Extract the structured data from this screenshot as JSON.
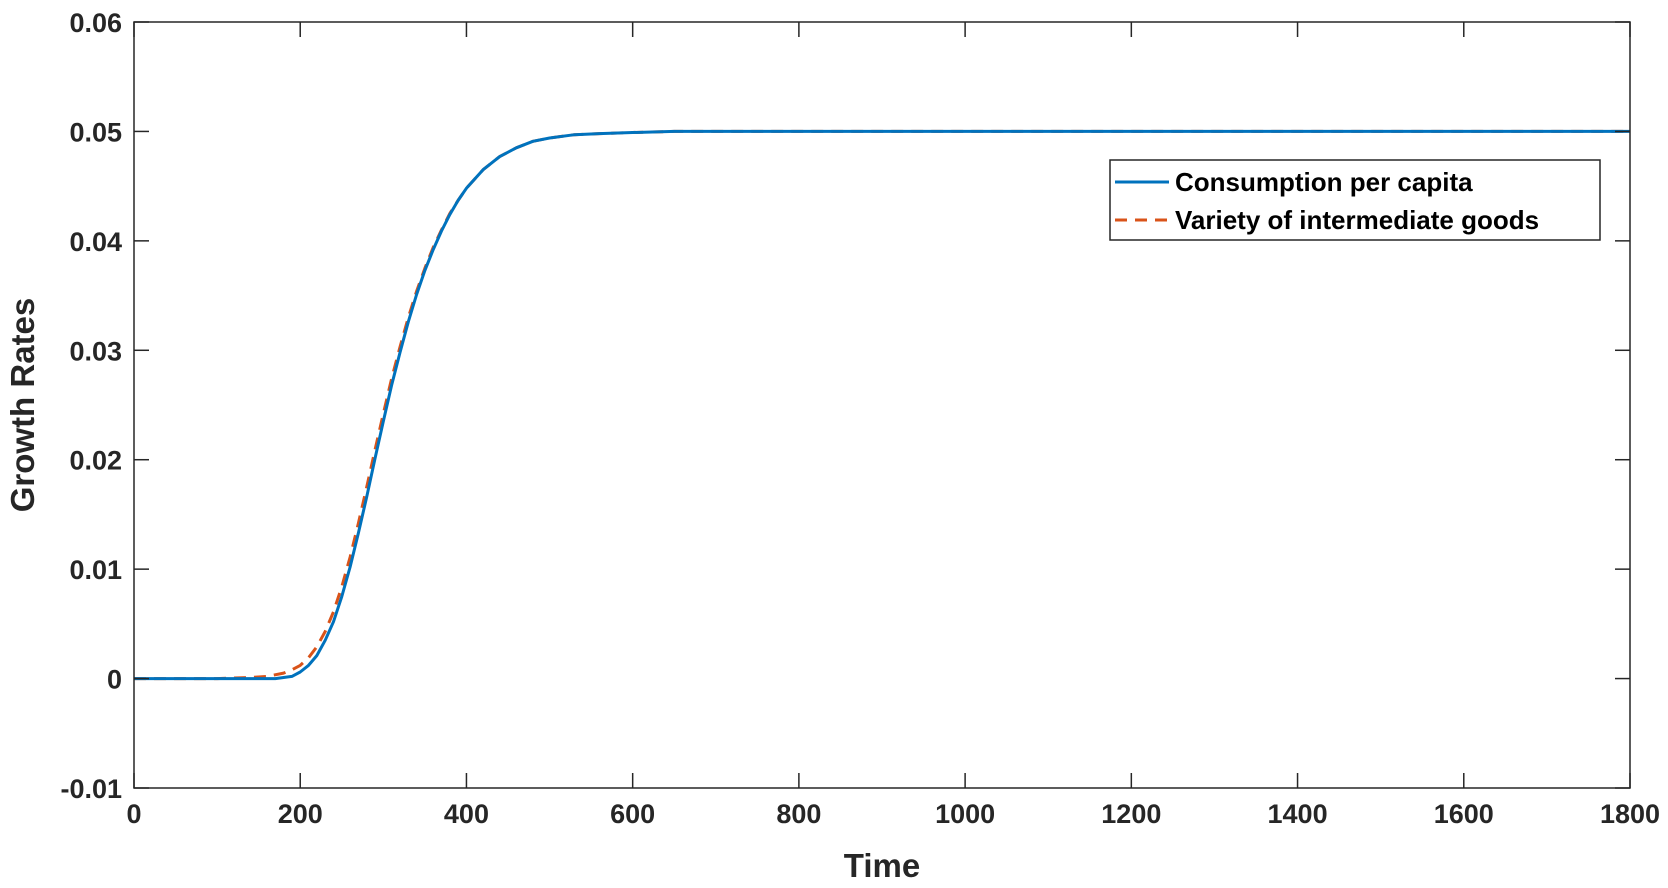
{
  "chart_data": {
    "type": "line",
    "title": "",
    "xlabel": "Time",
    "ylabel": "Growth Rates",
    "xlim": [
      0,
      1800
    ],
    "ylim": [
      -0.01,
      0.06
    ],
    "xticks": [
      0,
      200,
      400,
      600,
      800,
      1000,
      1200,
      1400,
      1600,
      1800
    ],
    "yticks": [
      -0.01,
      0,
      0.01,
      0.02,
      0.03,
      0.04,
      0.05,
      0.06
    ],
    "xtick_labels": [
      "0",
      "200",
      "400",
      "600",
      "800",
      "1000",
      "1200",
      "1400",
      "1600",
      "1800"
    ],
    "ytick_labels": [
      "-0.01",
      "0",
      "0.01",
      "0.02",
      "0.03",
      "0.04",
      "0.05",
      "0.06"
    ],
    "grid": false,
    "legend_position": "top-right",
    "series": [
      {
        "name": "Consumption per capita",
        "color": "#0072BD",
        "style": "solid",
        "x": [
          0,
          100,
          170,
          190,
          200,
          210,
          220,
          230,
          240,
          250,
          260,
          270,
          280,
          290,
          300,
          310,
          320,
          330,
          340,
          350,
          360,
          370,
          380,
          390,
          400,
          420,
          440,
          460,
          480,
          500,
          530,
          560,
          600,
          650,
          700,
          800,
          1000,
          1200,
          1400,
          1600,
          1800
        ],
        "y": [
          0,
          0,
          0,
          0.0002,
          0.0006,
          0.0012,
          0.0021,
          0.0035,
          0.0052,
          0.0075,
          0.0102,
          0.0133,
          0.0166,
          0.0201,
          0.0235,
          0.0268,
          0.0298,
          0.0326,
          0.0351,
          0.0373,
          0.0392,
          0.0409,
          0.0424,
          0.0437,
          0.0448,
          0.0465,
          0.0477,
          0.0485,
          0.0491,
          0.0494,
          0.0497,
          0.0498,
          0.0499,
          0.05,
          0.05,
          0.05,
          0.05,
          0.05,
          0.05,
          0.05,
          0.05
        ]
      },
      {
        "name": "Variety of intermediate goods",
        "color": "#D95319",
        "style": "dashed",
        "x": [
          0,
          100,
          140,
          160,
          180,
          190,
          200,
          210,
          220,
          230,
          240,
          250,
          260,
          270,
          280,
          290,
          300,
          310,
          320,
          330,
          340,
          350,
          360,
          370,
          380,
          390,
          400,
          420,
          440,
          460,
          480,
          500,
          530,
          560,
          600,
          650,
          700,
          800,
          1000,
          1200,
          1400,
          1600,
          1800
        ],
        "y": [
          0,
          0,
          0.0001,
          0.0002,
          0.0005,
          0.0008,
          0.0012,
          0.0019,
          0.0029,
          0.0043,
          0.0061,
          0.0084,
          0.0111,
          0.0142,
          0.0175,
          0.0209,
          0.0242,
          0.0274,
          0.0303,
          0.033,
          0.0354,
          0.0375,
          0.0394,
          0.041,
          0.0425,
          0.0437,
          0.0448,
          0.0465,
          0.0477,
          0.0485,
          0.0491,
          0.0494,
          0.0497,
          0.0498,
          0.0499,
          0.05,
          0.05,
          0.05,
          0.05,
          0.05,
          0.05,
          0.05,
          0.05
        ]
      }
    ]
  }
}
